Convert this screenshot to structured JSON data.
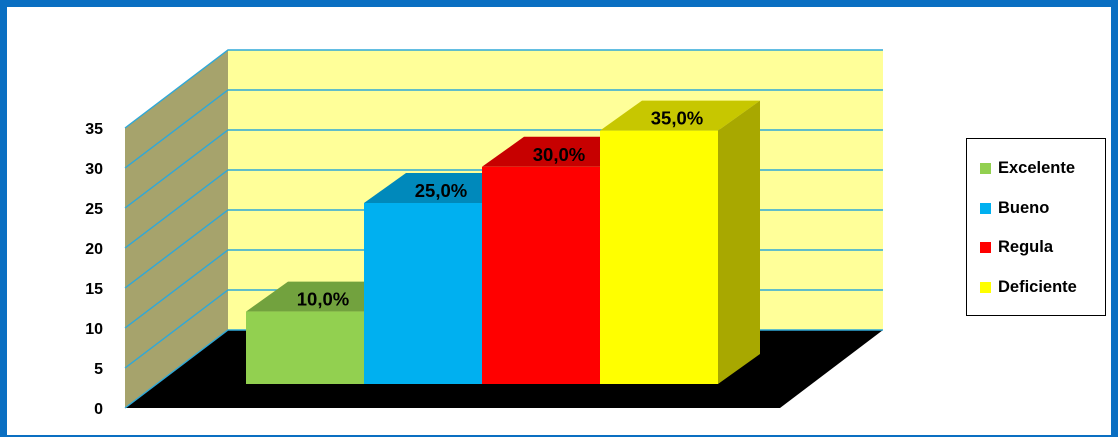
{
  "chart_data": {
    "type": "bar",
    "categories": [
      "Excelente",
      "Bueno",
      "Regula",
      "Deficiente"
    ],
    "values": [
      10.0,
      25.0,
      30.0,
      35.0
    ],
    "data_labels": [
      "10,0%",
      "25,0%",
      "30,0%",
      "35,0%"
    ],
    "yticks": [
      "0",
      "5",
      "10",
      "15",
      "20",
      "25",
      "30",
      "35"
    ],
    "ylim": [
      0,
      35
    ],
    "colors": {
      "Excelente": "#92d050",
      "Bueno": "#00b0f0",
      "Regula": "#ff0000",
      "Deficiente": "#ffff00"
    },
    "grid": true,
    "wall_color": "#ffff99",
    "floor_color": "#000000",
    "legend_position": "right",
    "title": "",
    "xlabel": "",
    "ylabel": ""
  },
  "legend": {
    "items": [
      {
        "label": "Excelente",
        "color": "#92d050"
      },
      {
        "label": "Bueno",
        "color": "#00b0f0"
      },
      {
        "label": "Regula",
        "color": "#ff0000"
      },
      {
        "label": "Deficiente",
        "color": "#ffff00"
      }
    ]
  }
}
